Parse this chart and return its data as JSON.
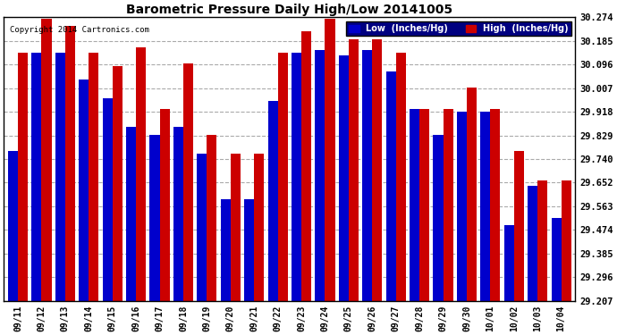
{
  "title": "Barometric Pressure Daily High/Low 20141005",
  "copyright": "Copyright 2014 Cartronics.com",
  "legend_low": "Low  (Inches/Hg)",
  "legend_high": "High  (Inches/Hg)",
  "dates": [
    "09/11",
    "09/12",
    "09/13",
    "09/14",
    "09/15",
    "09/16",
    "09/17",
    "09/18",
    "09/19",
    "09/20",
    "09/21",
    "09/22",
    "09/23",
    "09/24",
    "09/25",
    "09/26",
    "09/27",
    "09/28",
    "09/29",
    "09/30",
    "10/01",
    "10/02",
    "10/03",
    "10/04"
  ],
  "low": [
    29.77,
    30.14,
    30.14,
    30.04,
    29.97,
    29.86,
    29.83,
    29.86,
    29.76,
    29.59,
    29.59,
    29.96,
    30.14,
    30.15,
    30.13,
    30.15,
    30.07,
    29.93,
    29.83,
    29.92,
    29.92,
    29.49,
    29.64,
    29.52
  ],
  "high": [
    30.14,
    30.27,
    30.24,
    30.14,
    30.09,
    30.16,
    29.93,
    30.1,
    29.83,
    29.76,
    29.76,
    30.14,
    30.22,
    30.27,
    30.19,
    30.19,
    30.14,
    29.93,
    29.93,
    30.01,
    29.93,
    29.77,
    29.66,
    29.66
  ],
  "ymin": 29.207,
  "ymax": 30.274,
  "yticks": [
    30.274,
    30.185,
    30.096,
    30.007,
    29.918,
    29.829,
    29.74,
    29.652,
    29.563,
    29.474,
    29.385,
    29.296,
    29.207
  ],
  "low_color": "#0000cc",
  "high_color": "#cc0000",
  "bg_color": "#ffffff",
  "grid_color": "#aaaaaa",
  "bar_width": 0.42,
  "figsize": [
    6.9,
    3.75
  ],
  "dpi": 100
}
